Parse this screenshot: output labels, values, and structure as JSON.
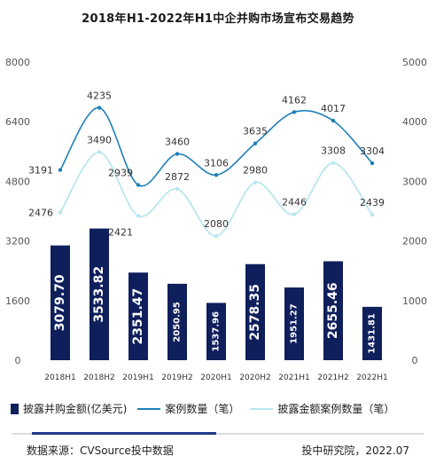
{
  "title": "2018年H1-2022年H1中企并购市场宣布交易趋势",
  "chart_data": {
    "type": "bar",
    "categories": [
      "2018H1",
      "2018H2",
      "2019H1",
      "2019H2",
      "2020H1",
      "2020H2",
      "2021H1",
      "2021H2",
      "2022H1"
    ],
    "left_axis": {
      "min": 0,
      "max": 8000,
      "ticks": [
        "0",
        "1600",
        "3200",
        "4800",
        "6400",
        "8000"
      ]
    },
    "right_axis": {
      "min": 0,
      "max": 5000,
      "ticks": [
        "0",
        "1000",
        "2000",
        "3000",
        "4000",
        "5000"
      ]
    },
    "series": [
      {
        "name": "披露并购金额(亿美元)",
        "type": "bar",
        "axis": "left",
        "color": "#0f1f5c",
        "values": [
          3079.7,
          3533.82,
          2351.47,
          2050.95,
          1537.96,
          2578.35,
          1951.27,
          2655.46,
          1431.81
        ],
        "labels": [
          "3079.70",
          "3533.82",
          "2351.47",
          "2050.95",
          "1537.96",
          "2578.35",
          "1951.27",
          "2655.46",
          "1431.81"
        ],
        "large_label": [
          true,
          true,
          true,
          false,
          false,
          true,
          false,
          true,
          false
        ]
      },
      {
        "name": "案例数量（笔）",
        "type": "line",
        "axis": "right",
        "color": "#1e7fb8",
        "values": [
          3191,
          4235,
          2939,
          3460,
          3106,
          3635,
          4162,
          4017,
          3304
        ]
      },
      {
        "name": "披露金额案例数量（笔）",
        "type": "line",
        "axis": "right",
        "color": "#b8e6f0",
        "values": [
          2476,
          3490,
          2421,
          2872,
          2080,
          2980,
          2446,
          3308,
          2439
        ]
      }
    ]
  },
  "legend": {
    "bar": "披露并购金额(亿美元)",
    "line1": "案例数量（笔）",
    "line2": "披露金额案例数量（笔）"
  },
  "footer": {
    "source": "数据来源：CVSource投中数据",
    "credit": "投中研究院，2022.07"
  }
}
